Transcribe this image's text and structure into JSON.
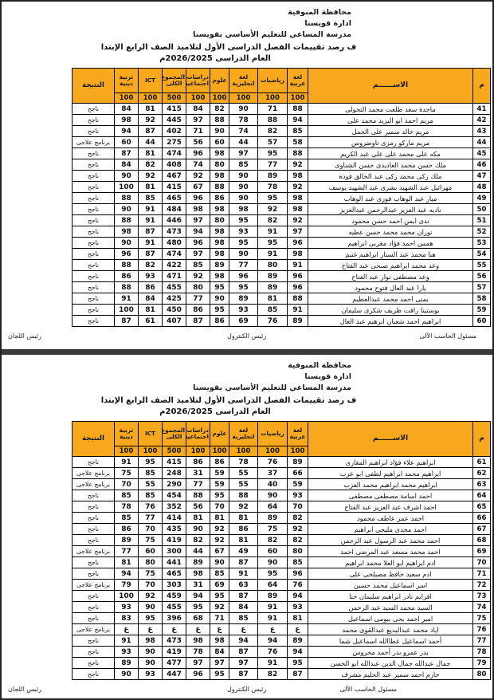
{
  "doc_header": {
    "governorate": "محافظة المنوفية",
    "administration": "ادارة قويسنا",
    "school": "مدرسة المساعي للتعليم الأساسي بقويسنا",
    "title": "ف رصد تقييمات الفصل الدراسى الأول لتلاميذ الصف الرابع الإبتدا",
    "year": "العام الدراسى 2026/2025م"
  },
  "table_header": {
    "no": "م",
    "name": "الاســــــم",
    "result": "النتيجة",
    "subjects": [
      {
        "label": "لغة عربية",
        "max": "100"
      },
      {
        "label": "رياضيات",
        "max": "100"
      },
      {
        "label": "لغة انجليزية",
        "max": "100"
      },
      {
        "label": "علوم",
        "max": "100"
      },
      {
        "label": "دراسات اجتماعية",
        "max": "100"
      },
      {
        "label": "المجموع الكلى",
        "max": "500"
      },
      {
        "label": "ICT",
        "max": "100"
      },
      {
        "label": "تربية دينية",
        "max": "100"
      }
    ]
  },
  "footer": {
    "right": "مسئول الحاسب الآلى",
    "center": "رئيس الكنترول",
    "left": "رئيس اللجان"
  },
  "colors": {
    "header_bg": "#F7A81D",
    "divider": "#3A3A3A",
    "border": "#000000"
  },
  "tables": [
    {
      "rows": [
        [
          "41",
          "ماجدة سعد طلعت محمد التجولى",
          "88",
          "71",
          "90",
          "82",
          "84",
          "415",
          "81",
          "84",
          "ناجح"
        ],
        [
          "42",
          "مريم احمد ابو اليزيد محمد على",
          "94",
          "88",
          "78",
          "88",
          "97",
          "445",
          "92",
          "98",
          "ناجح"
        ],
        [
          "43",
          "مريم خالد سمير على الجمل",
          "85",
          "82",
          "74",
          "90",
          "71",
          "402",
          "87",
          "94",
          "ناجح"
        ],
        [
          "44",
          "مريم ماركو رمزى تاوضروس",
          "58",
          "57",
          "44",
          "60",
          "56",
          "275",
          "44",
          "60",
          "برنامج علاجى"
        ],
        [
          "45",
          "مكه على محمد على على عبد الكريم",
          "88",
          "95",
          "97",
          "98",
          "96",
          "474",
          "81",
          "87",
          "ناجح"
        ],
        [
          "46",
          "ملك حسن محمد العاديدى حسن الشناوى",
          "92",
          "77",
          "85",
          "80",
          "74",
          "408",
          "82",
          "84",
          "ناجح"
        ],
        [
          "47",
          "ملك زكى محمد زكى عبد الخالق فودة",
          "98",
          "89",
          "90",
          "98",
          "92",
          "467",
          "92",
          "90",
          "ناجح"
        ],
        [
          "48",
          "مهرائيل عبد الشهيد بشرى عبد الشهيد يوسف",
          "92",
          "78",
          "90",
          "88",
          "67",
          "415",
          "81",
          "100",
          "ناجح"
        ],
        [
          "49",
          "ميار عبد الوهاب فوزى عبد الوهاب",
          "98",
          "95",
          "90",
          "86",
          "96",
          "465",
          "85",
          "88",
          "ناجح"
        ],
        [
          "50",
          "ناديه عبد العزيز عبدالرحمن عبدالعزيز",
          "98",
          "92",
          "98",
          "98",
          "98",
          "484",
          "91",
          "90",
          "ناجح"
        ],
        [
          "51",
          "ندى ايمن احمد حسن  محمود",
          "92",
          "82",
          "95",
          "80",
          "97",
          "446",
          "91",
          "88",
          "ناجح"
        ],
        [
          "52",
          "نوران محمد محمد حسن عطيه",
          "97",
          "91",
          "93",
          "98",
          "94",
          "473",
          "87",
          "98",
          "ناجح"
        ],
        [
          "53",
          "همس احمد فؤاد مغربى ابراهيم",
          "96",
          "95",
          "95",
          "98",
          "96",
          "480",
          "91",
          "90",
          "ناجح"
        ],
        [
          "54",
          "هنا محمد عبد الستار ابراهيم غنيم",
          "98",
          "91",
          "90",
          "98",
          "97",
          "474",
          "87",
          "96",
          "ناجح"
        ],
        [
          "55",
          "وعد محمد ابراهيم صبحى عبد الفتاح",
          "91",
          "80",
          "77",
          "89",
          "85",
          "422",
          "82",
          "88",
          "ناجح"
        ],
        [
          "56",
          "وعد مصطفى نوار عبد الفتاح",
          "96",
          "89",
          "96",
          "98",
          "92",
          "471",
          "93",
          "86",
          "ناجح"
        ],
        [
          "57",
          "يارا عبد العال فتوح محمود",
          "96",
          "89",
          "95",
          "95",
          "80",
          "455",
          "86",
          "88",
          "ناجح"
        ],
        [
          "58",
          "يمنى احمد محمد عبدالعظيم",
          "88",
          "81",
          "89",
          "90",
          "77",
          "425",
          "84",
          "91",
          "ناجح"
        ],
        [
          "59",
          "يوستينا رافت ظريف شكرى سليمان",
          "91",
          "85",
          "93",
          "95",
          "86",
          "450",
          "81",
          "100",
          "ناجح"
        ],
        [
          "60",
          "ابراهيم احمد شعبان ابرهيم عبد العال",
          "89",
          "76",
          "69",
          "86",
          "87",
          "407",
          "61",
          "87",
          "ناجح"
        ]
      ]
    },
    {
      "rows": [
        [
          "61",
          "ابراهيم علاء فؤاد ابراهيم المغازى",
          "89",
          "76",
          "78",
          "86",
          "86",
          "415",
          "95",
          "91",
          "ناجح"
        ],
        [
          "62",
          "ابراهيم محمد ابراهيم لطفى ابو عرب",
          "66",
          "37",
          "55",
          "59",
          "31",
          "248",
          "85",
          "75",
          "برنامج علاجى"
        ],
        [
          "63",
          "ابراهيم محمد ابراهيم محمد العزب",
          "59",
          "40",
          "55",
          "59",
          "77",
          "290",
          "55",
          "70",
          "برنامج علاجى"
        ],
        [
          "64",
          "احمد اسامة مصطفى مصطفى",
          "93",
          "90",
          "88",
          "95",
          "88",
          "454",
          "85",
          "85",
          "ناجح"
        ],
        [
          "65",
          "احمد اشرف عبد العزيز عبد الفتاح",
          "70",
          "64",
          "92",
          "70",
          "56",
          "352",
          "76",
          "78",
          "ناجح"
        ],
        [
          "66",
          "احمد عمر عاطف محمود",
          "82",
          "89",
          "81",
          "81",
          "81",
          "414",
          "77",
          "85",
          "ناجح"
        ],
        [
          "67",
          "احمد مجدى مليجى ابراهيم",
          "92",
          "75",
          "86",
          "92",
          "90",
          "435",
          "70",
          "86",
          "ناجح"
        ],
        [
          "68",
          "احمد محمد عبد الرسول عبد الرحمن",
          "82",
          "82",
          "81",
          "92",
          "82",
          "419",
          "75",
          "89",
          "ناجح"
        ],
        [
          "69",
          "احمد محمد مسعد عبد المرضى احمد",
          "80",
          "60",
          "49",
          "67",
          "44",
          "300",
          "60",
          "77",
          "برنامج علاجى"
        ],
        [
          "70",
          "ادم ابراهيم ابو العلا محمد ابراهيم",
          "85",
          "90",
          "87",
          "90",
          "89",
          "441",
          "80",
          "81",
          "ناجح"
        ],
        [
          "71",
          "ادم سعيد حافظ مصيلحى على",
          "96",
          "95",
          "91",
          "85",
          "98",
          "465",
          "75",
          "94",
          "ناجح"
        ],
        [
          "72",
          "اسر اسماعيل محمد حسين",
          "76",
          "64",
          "63",
          "69",
          "31",
          "303",
          "70",
          "79",
          "برنامج علاجى"
        ],
        [
          "73",
          "افرايم نادر ابراهيم سليمان حنا",
          "94",
          "89",
          "87",
          "95",
          "94",
          "459",
          "92",
          "100",
          "ناجح"
        ],
        [
          "74",
          "السيد محمد السيد عبد الرحمن",
          "93",
          "91",
          "84",
          "92",
          "95",
          "455",
          "90",
          "93",
          "ناجح"
        ],
        [
          "75",
          "امير احمد يحى بيومى اسماعيل",
          "81",
          "91",
          "85",
          "71",
          "68",
          "396",
          "95",
          "83",
          "ناجح"
        ],
        [
          "76",
          "اياد محمد عبدالبديع عبدالقوى محمد",
          "غ",
          "غ",
          "غ",
          "غ",
          "غ",
          "غ",
          "غ",
          "غ",
          "برنامج علاجى"
        ],
        [
          "77",
          "أحمد اسماعيل عطاالله اسماعيل شما",
          "89",
          "94",
          "94",
          "98",
          "98",
          "473",
          "98",
          "91",
          "ناجح"
        ],
        [
          "78",
          "بدر عمرو بدر أحمد محروس",
          "94",
          "76",
          "87",
          "84",
          "78",
          "419",
          "90",
          "93",
          "ناجح"
        ],
        [
          "79",
          "جمال عبدالله جمال الدين عبدالله ابو الحسن",
          "95",
          "91",
          "97",
          "97",
          "97",
          "477",
          "90",
          "89",
          "ناجح"
        ],
        [
          "80",
          "حازم احمد سمير عبد الحليم مشرف",
          "87",
          "82",
          "87",
          "95",
          "96",
          "447",
          "93",
          "90",
          "ناجح"
        ]
      ]
    }
  ]
}
